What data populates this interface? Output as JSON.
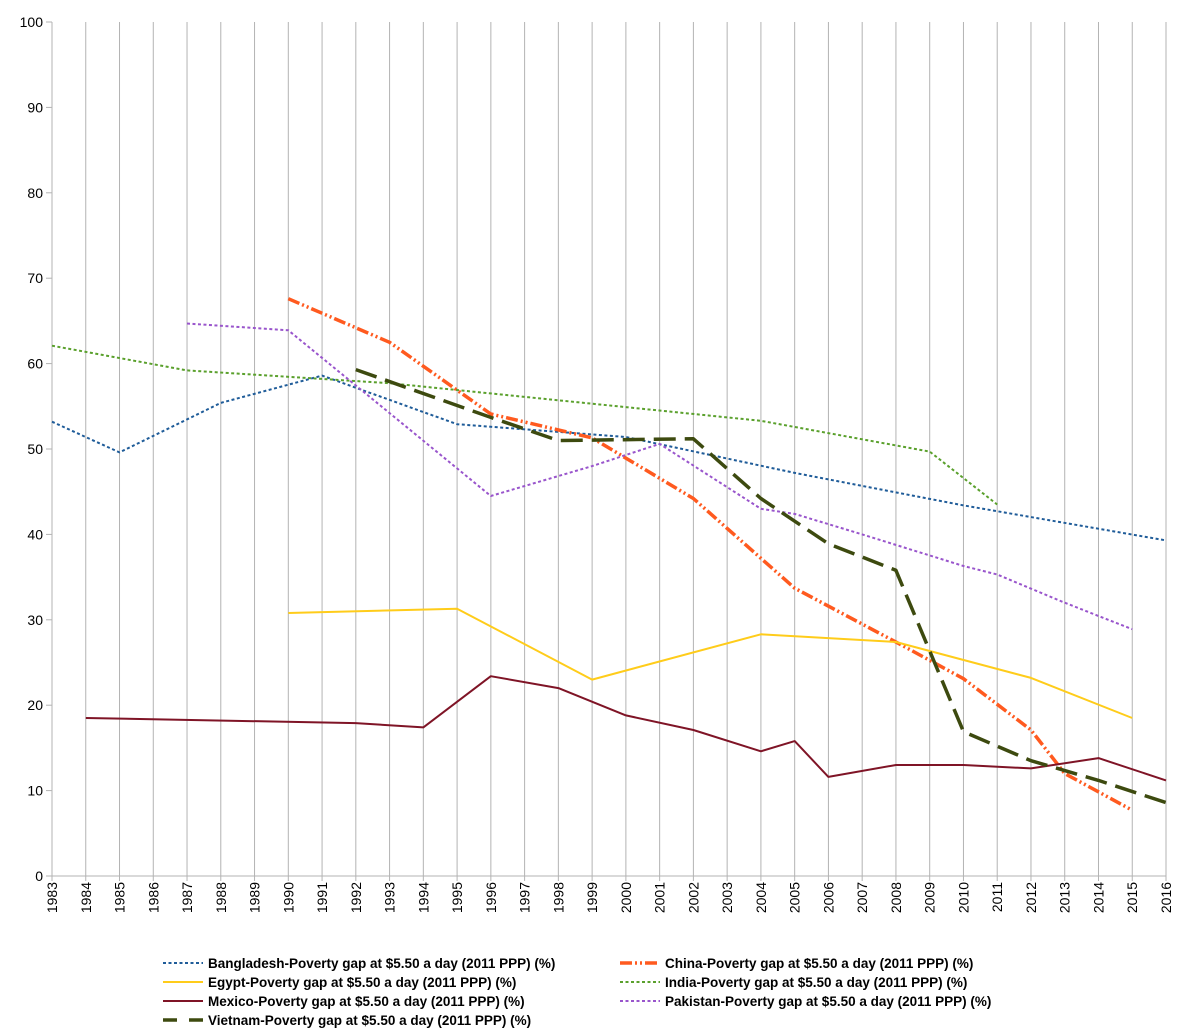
{
  "chart_data": {
    "type": "line",
    "title": "",
    "xlabel": "",
    "ylabel": "",
    "ylim": [
      0,
      100
    ],
    "yticks": [
      0,
      10,
      20,
      30,
      40,
      50,
      60,
      70,
      80,
      90,
      100
    ],
    "categories": [
      "1983",
      "1984",
      "1985",
      "1986",
      "1987",
      "1988",
      "1989",
      "1990",
      "1991",
      "1992",
      "1993",
      "1994",
      "1995",
      "1996",
      "1997",
      "1998",
      "1999",
      "2000",
      "2001",
      "2002",
      "2003",
      "2004",
      "2005",
      "2006",
      "2007",
      "2008",
      "2009",
      "2010",
      "2011",
      "2012",
      "2013",
      "2014",
      "2015",
      "2016"
    ],
    "grid": "vertical",
    "legend_position": "bottom",
    "series": [
      {
        "name": "Bangladesh-Poverty gap at $5.50 a day (2011 PPP) (%)",
        "color": "#1f5c99",
        "line_style": "dotted",
        "points": [
          [
            "1983",
            53.2
          ],
          [
            "1985",
            49.6
          ],
          [
            "1988",
            55.4
          ],
          [
            "1991",
            58.6
          ],
          [
            "1995",
            52.9
          ],
          [
            "2000",
            51.4
          ],
          [
            "2005",
            47.2
          ],
          [
            "2010",
            43.4
          ],
          [
            "2016",
            39.3
          ]
        ]
      },
      {
        "name": "China-Poverty gap at $5.50 a day (2011 PPP) (%)",
        "color": "#ff5a1f",
        "line_style": "dash-dot-dot",
        "points": [
          [
            "1990",
            67.6
          ],
          [
            "1993",
            62.5
          ],
          [
            "1996",
            54.1
          ],
          [
            "1999",
            51.3
          ],
          [
            "2002",
            44.2
          ],
          [
            "2005",
            33.7
          ],
          [
            "2008",
            27.4
          ],
          [
            "2010",
            23.1
          ],
          [
            "2012",
            17.1
          ],
          [
            "2013",
            12.0
          ],
          [
            "2015",
            7.7
          ]
        ]
      },
      {
        "name": "Egypt-Poverty gap at $5.50 a day (2011 PPP) (%)",
        "color": "#ffcc1a",
        "line_style": "solid",
        "points": [
          [
            "1990",
            30.8
          ],
          [
            "1995",
            31.3
          ],
          [
            "1999",
            23.0
          ],
          [
            "2004",
            28.3
          ],
          [
            "2008",
            27.4
          ],
          [
            "2012",
            23.2
          ],
          [
            "2015",
            18.5
          ]
        ]
      },
      {
        "name": "India-Poverty gap at $5.50 a day (2011 PPP) (%)",
        "color": "#5aa02c",
        "line_style": "dotted",
        "points": [
          [
            "1983",
            62.1
          ],
          [
            "1987",
            59.2
          ],
          [
            "1993",
            57.7
          ],
          [
            "2004",
            53.3
          ],
          [
            "2009",
            49.7
          ],
          [
            "2011",
            43.5
          ]
        ]
      },
      {
        "name": "Mexico-Poverty gap at $5.50 a day (2011 PPP) (%)",
        "color": "#7f1426",
        "line_style": "solid",
        "points": [
          [
            "1984",
            18.5
          ],
          [
            "1992",
            17.9
          ],
          [
            "1994",
            17.4
          ],
          [
            "1996",
            23.4
          ],
          [
            "1998",
            22.0
          ],
          [
            "2000",
            18.8
          ],
          [
            "2002",
            17.1
          ],
          [
            "2004",
            14.6
          ],
          [
            "2005",
            15.8
          ],
          [
            "2006",
            11.6
          ],
          [
            "2008",
            13.0
          ],
          [
            "2010",
            13.0
          ],
          [
            "2012",
            12.6
          ],
          [
            "2014",
            13.8
          ],
          [
            "2016",
            11.2
          ]
        ]
      },
      {
        "name": "Pakistan-Poverty gap at $5.50 a day (2011 PPP) (%)",
        "color": "#9955cc",
        "line_style": "dotted",
        "points": [
          [
            "1987",
            64.7
          ],
          [
            "1990",
            63.9
          ],
          [
            "1993",
            54.2
          ],
          [
            "1996",
            44.5
          ],
          [
            "1999",
            48.0
          ],
          [
            "2001",
            50.6
          ],
          [
            "2004",
            43.0
          ],
          [
            "2005",
            42.4
          ],
          [
            "2007",
            40.0
          ],
          [
            "2010",
            36.3
          ],
          [
            "2011",
            35.3
          ],
          [
            "2013",
            32.0
          ],
          [
            "2015",
            28.9
          ]
        ]
      },
      {
        "name": "Vietnam-Poverty gap at $5.50 a day (2011 PPP) (%)",
        "color": "#3d4a0f",
        "line_style": "long-dash",
        "points": [
          [
            "1992",
            59.3
          ],
          [
            "1996",
            53.7
          ],
          [
            "1998",
            51.0
          ],
          [
            "2002",
            51.2
          ],
          [
            "2004",
            44.2
          ],
          [
            "2006",
            38.9
          ],
          [
            "2008",
            35.8
          ],
          [
            "2010",
            16.9
          ],
          [
            "2012",
            13.5
          ],
          [
            "2014",
            11.2
          ],
          [
            "2016",
            8.6
          ]
        ]
      }
    ]
  }
}
